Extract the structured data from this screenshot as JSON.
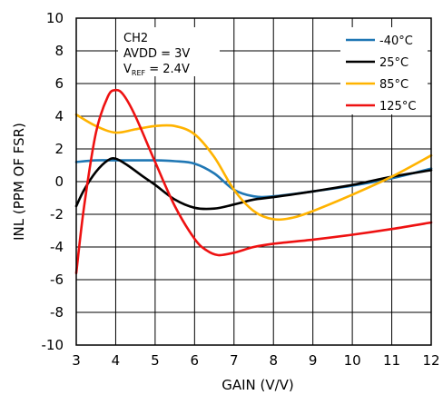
{
  "chart_data": {
    "type": "line",
    "title": "",
    "xlabel": "GAIN (V/V)",
    "ylabel": "INL (PPM OF FSR)",
    "xlim": [
      3,
      12
    ],
    "ylim": [
      -10,
      10
    ],
    "x_ticks": [
      3,
      4,
      5,
      6,
      7,
      8,
      9,
      10,
      11,
      12
    ],
    "y_ticks": [
      -10,
      -8,
      -6,
      -4,
      -2,
      0,
      2,
      4,
      6,
      8,
      10
    ],
    "x_tick_labels": [
      "3",
      "4",
      "5",
      "6",
      "7",
      "8",
      "9",
      "10",
      "11",
      "12"
    ],
    "y_tick_labels": [
      "-10",
      "-8",
      "-6",
      "-4",
      "-2",
      "0",
      "2",
      "4",
      "6",
      "8",
      "10"
    ],
    "grid": true,
    "legend_position": "top-right",
    "annotation": {
      "line1": "CH2",
      "line2": "AVDD = 3V",
      "line3_prefix": "V",
      "line3_sub": "REF",
      "line3_suffix": " = 2.4V"
    },
    "series": [
      {
        "name": "-40°C",
        "color": "#1f77b4",
        "x": [
          3,
          3.5,
          4,
          4.5,
          5,
          5.5,
          6,
          6.5,
          7,
          7.5,
          8,
          9,
          10,
          11,
          12
        ],
        "y": [
          1.2,
          1.3,
          1.3,
          1.3,
          1.3,
          1.25,
          1.1,
          0.5,
          -0.5,
          -0.9,
          -0.9,
          -0.6,
          -0.25,
          0.2,
          0.8
        ]
      },
      {
        "name": "25°C",
        "color": "#000000",
        "x": [
          3,
          3.2,
          3.5,
          3.8,
          4,
          4.3,
          4.7,
          5,
          5.5,
          6,
          6.5,
          7,
          7.5,
          8,
          9,
          10,
          11,
          12
        ],
        "y": [
          -1.5,
          -0.5,
          0.6,
          1.3,
          1.4,
          1.0,
          0.3,
          -0.2,
          -1.1,
          -1.6,
          -1.65,
          -1.4,
          -1.1,
          -0.95,
          -0.6,
          -0.2,
          0.3,
          0.7
        ]
      },
      {
        "name": "85°C",
        "color": "#ffb300",
        "x": [
          3,
          3.5,
          4,
          4.5,
          5,
          5.5,
          6,
          6.5,
          7,
          7.5,
          8,
          8.5,
          9,
          10,
          11,
          12
        ],
        "y": [
          4.1,
          3.4,
          3.0,
          3.2,
          3.4,
          3.4,
          2.9,
          1.5,
          -0.5,
          -1.8,
          -2.3,
          -2.2,
          -1.8,
          -0.8,
          0.3,
          1.6
        ]
      },
      {
        "name": "125°C",
        "color": "#ee1111",
        "x": [
          3,
          3.2,
          3.5,
          3.8,
          4,
          4.2,
          4.5,
          5,
          5.5,
          6,
          6.3,
          6.6,
          7,
          7.5,
          8,
          9,
          10,
          11,
          12
        ],
        "y": [
          -5.6,
          -1.5,
          3.0,
          5.2,
          5.6,
          5.3,
          4.0,
          1.2,
          -1.5,
          -3.5,
          -4.2,
          -4.5,
          -4.35,
          -4.0,
          -3.8,
          -3.55,
          -3.25,
          -2.9,
          -2.5
        ]
      }
    ]
  }
}
